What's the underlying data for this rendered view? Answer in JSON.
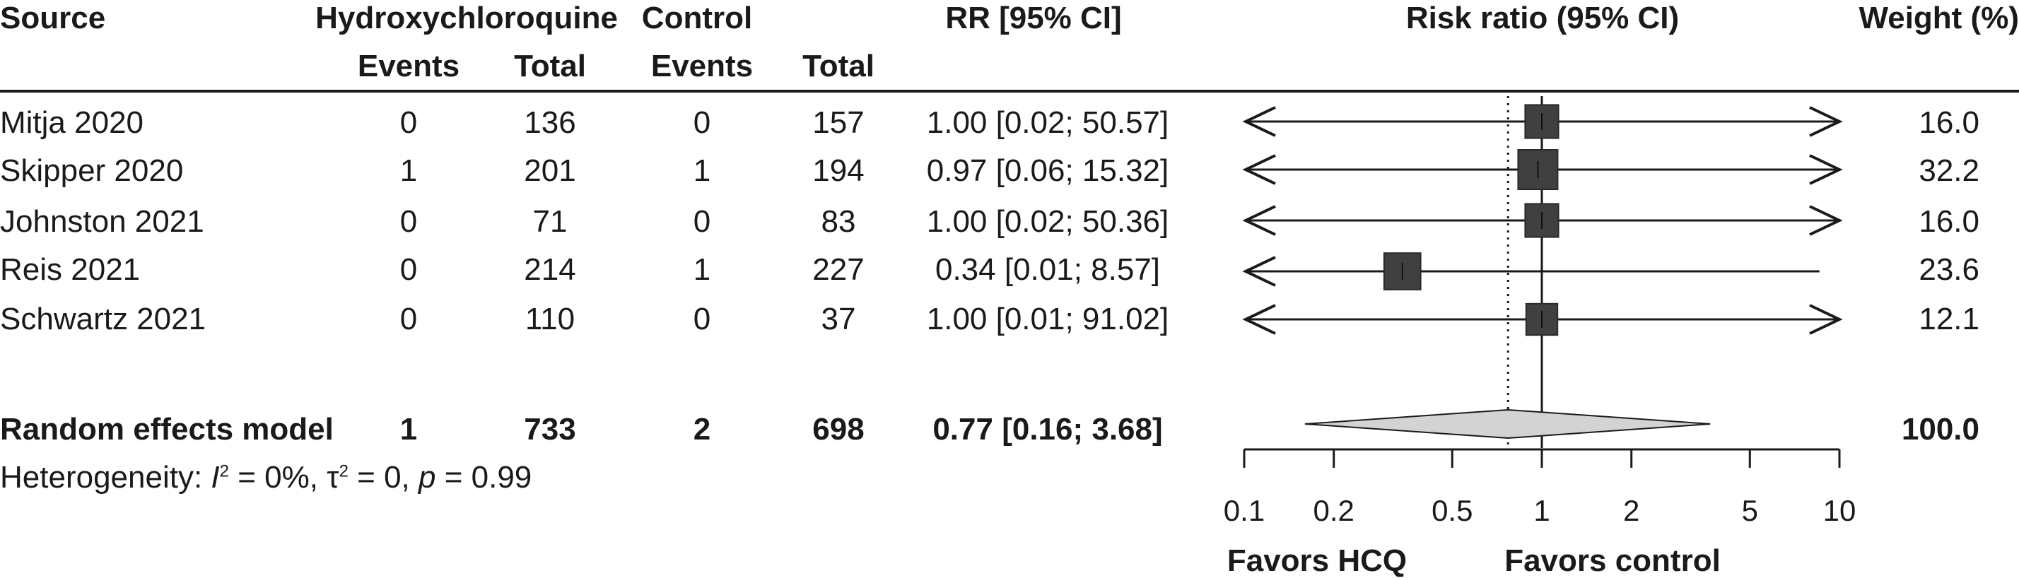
{
  "headers": {
    "source": "Source",
    "group1": "Hydroxychloroquine",
    "group2": "Control",
    "events1": "Events",
    "total1": "Total",
    "events2": "Events",
    "total2": "Total",
    "rr": "RR [95% CI]",
    "plot": "Risk ratio (95% CI)",
    "weight": "Weight (%)"
  },
  "studies": [
    {
      "source": "Mitja 2020",
      "events1": "0",
      "total1": "136",
      "events2": "0",
      "total2": "157",
      "rr_text": "1.00 [0.02; 50.57]",
      "weight": "16.0"
    },
    {
      "source": "Skipper 2020",
      "events1": "1",
      "total1": "201",
      "events2": "1",
      "total2": "194",
      "rr_text": "0.97 [0.06; 15.32]",
      "weight": "32.2"
    },
    {
      "source": "Johnston 2021",
      "events1": "0",
      "total1": "71",
      "events2": "0",
      "total2": "83",
      "rr_text": "1.00 [0.02; 50.36]",
      "weight": "16.0"
    },
    {
      "source": "Reis 2021",
      "events1": "0",
      "total1": "214",
      "events2": "1",
      "total2": "227",
      "rr_text": "0.34 [0.01; 8.57]",
      "weight": "23.6"
    },
    {
      "source": "Schwartz 2021",
      "events1": "0",
      "total1": "110",
      "events2": "0",
      "total2": "37",
      "rr_text": "1.00 [0.01; 91.02]",
      "weight": "12.1"
    }
  ],
  "pooled": {
    "label": "Random effects model",
    "events1": "1",
    "total1": "733",
    "events2": "2",
    "total2": "698",
    "rr_text": "0.77 [0.16; 3.68]",
    "weight": "100.0"
  },
  "heterogeneity": {
    "prefix": "Heterogeneity: ",
    "i2_symbol": "I",
    "i2_sup": "2",
    "i2_value": " = 0%, ",
    "tau_symbol": "τ",
    "tau_sup": "2",
    "tau_value": " = 0, ",
    "p_symbol": "p",
    "p_value": " = 0.99"
  },
  "favors": {
    "left": "Favors HCQ",
    "right": "Favors control"
  },
  "colors": {
    "marker": "#404040",
    "diamond": "#d3d3d3",
    "ink": "#1a1a1a"
  },
  "chart_data": {
    "type": "forest",
    "x_scale": "log",
    "xlim": [
      0.1,
      10
    ],
    "x_ticks": [
      0.1,
      0.2,
      0.5,
      1,
      2,
      5,
      10
    ],
    "x_tick_labels": [
      "0.1",
      "0.2",
      "0.5",
      "1",
      "2",
      "5",
      "10"
    ],
    "null_value": 1,
    "pooled_reference": 0.77,
    "studies": [
      {
        "name": "Mitja 2020",
        "rr": 1.0,
        "lower": 0.02,
        "upper": 50.57,
        "weight": 16.0
      },
      {
        "name": "Skipper 2020",
        "rr": 0.97,
        "lower": 0.06,
        "upper": 15.32,
        "weight": 32.2
      },
      {
        "name": "Johnston 2021",
        "rr": 1.0,
        "lower": 0.02,
        "upper": 50.36,
        "weight": 16.0
      },
      {
        "name": "Reis 2021",
        "rr": 0.34,
        "lower": 0.01,
        "upper": 8.57,
        "weight": 23.6
      },
      {
        "name": "Schwartz 2021",
        "rr": 1.0,
        "lower": 0.01,
        "upper": 91.02,
        "weight": 12.1
      }
    ],
    "pooled": {
      "name": "Random effects model",
      "rr": 0.77,
      "lower": 0.16,
      "upper": 3.68,
      "weight": 100.0
    }
  }
}
